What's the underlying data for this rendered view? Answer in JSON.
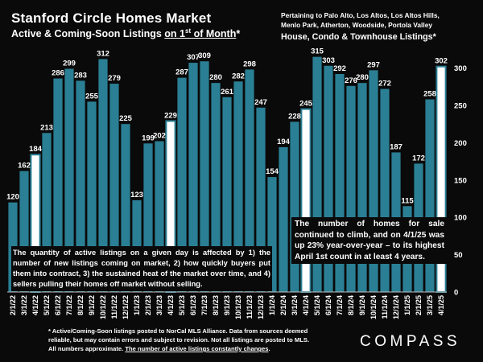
{
  "header": {
    "title": "Stanford Circle Homes Market",
    "subtitle_prefix": "Active & Coming-Soon Listings ",
    "subtitle_underlined_1": "on 1",
    "subtitle_sup": "st",
    "subtitle_underlined_2": " of Month",
    "subtitle_suffix": "*",
    "pertaining": "Pertaining to Palo Alto, Los Altos, Los Altos Hills, Menlo Park, Atherton, Woodside, Portola Valley",
    "series_label": "House, Condo & Townhouse Listings*"
  },
  "chart_data": {
    "type": "bar",
    "categories": [
      "2/1/22",
      "3/1/22",
      "4/1/22",
      "5/1/22",
      "6/1/22",
      "7/1/22",
      "8/1/22",
      "9/1/22",
      "10/1/22",
      "11/1/22",
      "12/1/22",
      "1/1/23",
      "2/1/23",
      "3/1/23",
      "4/1/23",
      "5/1/23",
      "6/1/23",
      "7/1/23",
      "8/1/23",
      "9/1/23",
      "10/1/23",
      "11/1/23",
      "12/1/23",
      "1/1/24",
      "2/1/24",
      "3/1/24",
      "4/1/24",
      "5/1/24",
      "6/1/24",
      "7/1/24",
      "8/1/24",
      "9/1/24",
      "10/1/24",
      "11/1/24",
      "12/1/24",
      "1/1/25",
      "2/1/25",
      "3/1/25",
      "4/1/25"
    ],
    "values": [
      120,
      162,
      184,
      213,
      286,
      299,
      283,
      255,
      312,
      279,
      225,
      123,
      199,
      202,
      229,
      287,
      307,
      309,
      280,
      261,
      282,
      298,
      247,
      154,
      194,
      228,
      245,
      315,
      303,
      292,
      276,
      280,
      297,
      272,
      187,
      115,
      172,
      258,
      302
    ],
    "highlighted": [
      "4/1/22",
      "4/1/23",
      "4/1/24",
      "4/1/25"
    ],
    "ylim": [
      0,
      320
    ],
    "yticks": [
      0,
      50,
      100,
      150,
      200,
      250,
      300
    ],
    "bar_color": "#2a7f94",
    "highlight_color": "#ffffff",
    "background": "#0a0a0a",
    "grid": false,
    "y_axis_position": "right"
  },
  "annotations": {
    "left_box": "The quantity of active listings on a given day is affected by 1) the number of new listings coming on market, 2) how quickly buyers put them into contract, 3) the sustained heat of the market over time, and 4) sellers pulling their homes off market without selling.",
    "right_box": "The number of homes for sale continued to climb, and on 4/1/25 was up 23% year-over-year – to its highest April 1st count in at least 4 years."
  },
  "footnote": {
    "text": "* Active/Coming-Soon listings posted to NorCal MLS Alliance.  Data from sources deemed reliable, but may contain errors and subject to revision.  Not all listings are posted to MLS. All numbers approximate. ",
    "link": "The number of active listings constantly changes",
    "end": "."
  },
  "brand": {
    "logo_text": "COMPASS"
  }
}
